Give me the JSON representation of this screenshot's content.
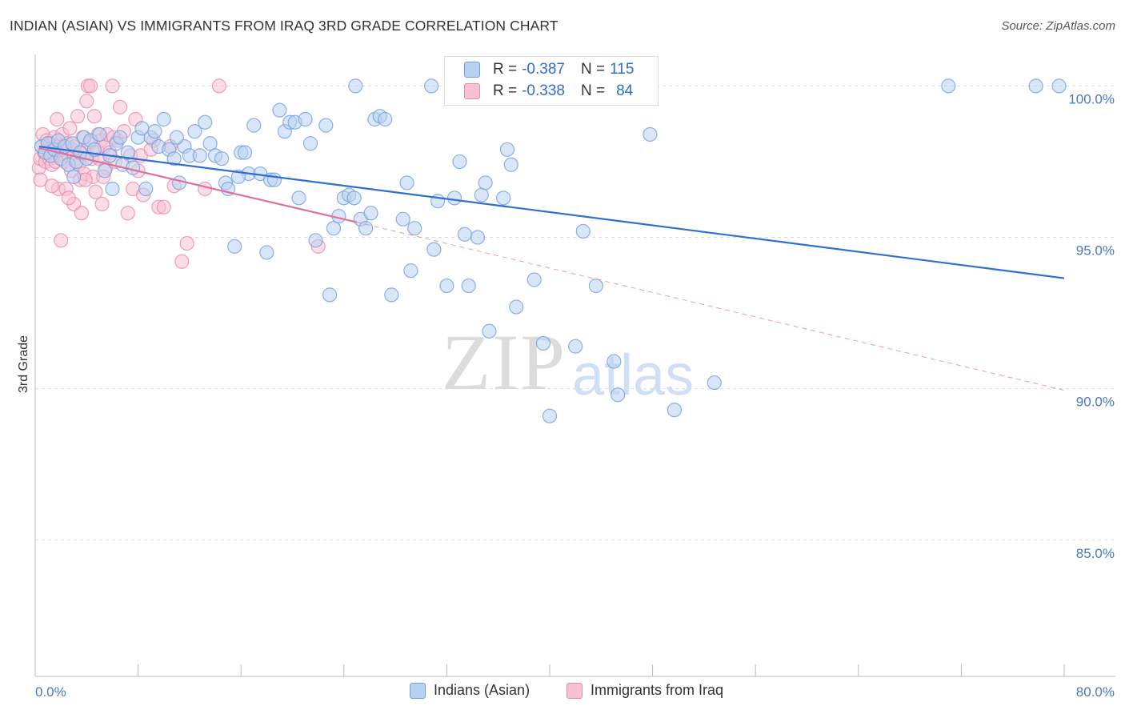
{
  "chart_data": {
    "type": "scatter",
    "title": "INDIAN (ASIAN) VS IMMIGRANTS FROM IRAQ 3RD GRADE CORRELATION CHART",
    "source": "Source: ZipAtlas.com",
    "ylabel": "3rd Grade",
    "xlabel": "",
    "xlim": [
      0,
      80
    ],
    "ylim": [
      80.5,
      101.2
    ],
    "x_tick_labels": [
      "0.0%",
      "80.0%"
    ],
    "y_ticks": [
      85,
      90,
      95,
      100
    ],
    "y_tick_labels": [
      "85.0%",
      "90.0%",
      "95.0%",
      "100.0%"
    ],
    "legend_placement": "top-center",
    "series": [
      {
        "name": "Indians (Asian)",
        "color": "#6f9fe0",
        "fill": "#b9d1f1",
        "R": "-0.387",
        "N": "115",
        "trend": {
          "x0": 0.3,
          "y0": 98.0,
          "x1": 80.0,
          "y1": 93.65
        },
        "points": [
          [
            0.5,
            98.0
          ],
          [
            0.8,
            97.8
          ],
          [
            1.0,
            98.1
          ],
          [
            1.2,
            97.7
          ],
          [
            1.5,
            97.9
          ],
          [
            1.8,
            98.2
          ],
          [
            2.0,
            97.6
          ],
          [
            2.3,
            98.0
          ],
          [
            2.6,
            97.4
          ],
          [
            2.9,
            98.1
          ],
          [
            3.2,
            97.5
          ],
          [
            3.5,
            97.8
          ],
          [
            3.8,
            98.3
          ],
          [
            4.0,
            97.6
          ],
          [
            4.3,
            98.2
          ],
          [
            4.6,
            97.9
          ],
          [
            5.0,
            98.4
          ],
          [
            5.4,
            97.2
          ],
          [
            5.8,
            97.7
          ],
          [
            6.0,
            96.6
          ],
          [
            6.3,
            98.1
          ],
          [
            6.8,
            97.4
          ],
          [
            7.2,
            97.8
          ],
          [
            7.6,
            97.3
          ],
          [
            8.0,
            98.3
          ],
          [
            8.3,
            98.6
          ],
          [
            8.6,
            96.6
          ],
          [
            9.0,
            98.3
          ],
          [
            9.6,
            98.0
          ],
          [
            10.0,
            98.9
          ],
          [
            10.4,
            97.9
          ],
          [
            10.8,
            97.6
          ],
          [
            11.2,
            96.8
          ],
          [
            11.6,
            98.0
          ],
          [
            12.0,
            97.7
          ],
          [
            12.4,
            98.5
          ],
          [
            12.8,
            97.7
          ],
          [
            13.2,
            98.8
          ],
          [
            13.6,
            98.1
          ],
          [
            14.0,
            97.7
          ],
          [
            14.5,
            97.6
          ],
          [
            14.8,
            96.8
          ],
          [
            15.0,
            96.6
          ],
          [
            15.5,
            94.7
          ],
          [
            16.0,
            97.8
          ],
          [
            16.3,
            97.8
          ],
          [
            16.6,
            97.1
          ],
          [
            17.0,
            98.7
          ],
          [
            17.5,
            97.1
          ],
          [
            18.0,
            94.5
          ],
          [
            18.3,
            96.9
          ],
          [
            18.6,
            96.9
          ],
          [
            19.0,
            99.2
          ],
          [
            19.4,
            98.5
          ],
          [
            19.8,
            98.8
          ],
          [
            20.2,
            98.8
          ],
          [
            20.5,
            96.3
          ],
          [
            21.0,
            98.9
          ],
          [
            21.4,
            98.1
          ],
          [
            21.8,
            94.9
          ],
          [
            22.6,
            98.7
          ],
          [
            22.9,
            93.1
          ],
          [
            23.2,
            95.3
          ],
          [
            23.6,
            95.7
          ],
          [
            24.0,
            96.3
          ],
          [
            24.4,
            96.4
          ],
          [
            24.8,
            96.3
          ],
          [
            25.3,
            95.6
          ],
          [
            25.7,
            95.3
          ],
          [
            26.1,
            95.8
          ],
          [
            26.4,
            98.9
          ],
          [
            26.8,
            99.0
          ],
          [
            27.2,
            98.9
          ],
          [
            27.7,
            93.1
          ],
          [
            28.6,
            95.6
          ],
          [
            28.9,
            96.8
          ],
          [
            29.2,
            93.9
          ],
          [
            29.5,
            95.3
          ],
          [
            31.0,
            94.6
          ],
          [
            31.3,
            96.2
          ],
          [
            32.0,
            93.4
          ],
          [
            32.6,
            96.3
          ],
          [
            33.0,
            97.5
          ],
          [
            33.4,
            95.1
          ],
          [
            33.7,
            93.4
          ],
          [
            34.4,
            95.0
          ],
          [
            34.7,
            96.4
          ],
          [
            35.0,
            96.8
          ],
          [
            35.3,
            91.9
          ],
          [
            36.4,
            96.3
          ],
          [
            36.7,
            97.9
          ],
          [
            37.0,
            97.4
          ],
          [
            37.4,
            92.7
          ],
          [
            38.8,
            93.6
          ],
          [
            39.5,
            91.5
          ],
          [
            40.0,
            89.1
          ],
          [
            41.5,
            100.0
          ],
          [
            42.0,
            91.4
          ],
          [
            42.6,
            95.2
          ],
          [
            43.6,
            93.4
          ],
          [
            45.0,
            90.9
          ],
          [
            45.3,
            89.8
          ],
          [
            47.8,
            98.4
          ],
          [
            49.7,
            89.3
          ],
          [
            52.8,
            90.2
          ],
          [
            71.0,
            100.0
          ],
          [
            77.8,
            100.0
          ],
          [
            79.6,
            100.0
          ],
          [
            24.9,
            100.0
          ],
          [
            30.8,
            100.0
          ],
          [
            9.3,
            98.5
          ],
          [
            11.0,
            98.3
          ],
          [
            15.8,
            97.0
          ],
          [
            6.6,
            98.3
          ],
          [
            3.0,
            97.0
          ]
        ]
      },
      {
        "name": "Immigrants from Iraq",
        "color": "#e88aab",
        "fill": "#f6c1d3",
        "R": "-0.338",
        "N": "84",
        "trend": {
          "x0": 0.3,
          "y0": 97.95,
          "x1": 25.0,
          "y1": 95.5
        },
        "trend_dashed": {
          "x0": 25.0,
          "y0": 95.5,
          "x1": 80.0,
          "y1": 89.95
        },
        "points": [
          [
            0.3,
            97.3
          ],
          [
            0.4,
            97.6
          ],
          [
            0.5,
            98.0
          ],
          [
            0.6,
            98.4
          ],
          [
            0.7,
            97.8
          ],
          [
            0.8,
            97.5
          ],
          [
            0.9,
            98.2
          ],
          [
            1.0,
            97.9
          ],
          [
            1.1,
            97.6
          ],
          [
            1.2,
            98.1
          ],
          [
            1.3,
            97.4
          ],
          [
            1.4,
            97.8
          ],
          [
            1.5,
            98.3
          ],
          [
            1.6,
            97.5
          ],
          [
            1.7,
            98.0
          ],
          [
            1.8,
            96.6
          ],
          [
            1.9,
            97.7
          ],
          [
            2.0,
            94.9
          ],
          [
            2.1,
            98.4
          ],
          [
            2.2,
            97.9
          ],
          [
            2.3,
            97.5
          ],
          [
            2.4,
            96.6
          ],
          [
            2.5,
            98.1
          ],
          [
            2.6,
            97.7
          ],
          [
            2.7,
            98.6
          ],
          [
            2.8,
            97.2
          ],
          [
            2.9,
            97.9
          ],
          [
            3.0,
            96.1
          ],
          [
            3.1,
            98.0
          ],
          [
            3.2,
            97.6
          ],
          [
            3.3,
            99.0
          ],
          [
            3.4,
            97.4
          ],
          [
            3.5,
            96.9
          ],
          [
            3.6,
            95.8
          ],
          [
            3.7,
            98.3
          ],
          [
            3.8,
            97.1
          ],
          [
            3.9,
            97.8
          ],
          [
            4.0,
            99.5
          ],
          [
            4.1,
            100.0
          ],
          [
            4.2,
            98.1
          ],
          [
            4.3,
            100.0
          ],
          [
            4.4,
            97.6
          ],
          [
            4.5,
            97.0
          ],
          [
            4.6,
            99.0
          ],
          [
            4.7,
            96.5
          ],
          [
            4.8,
            97.9
          ],
          [
            4.9,
            98.4
          ],
          [
            5.0,
            97.6
          ],
          [
            5.1,
            98.2
          ],
          [
            5.2,
            96.1
          ],
          [
            5.4,
            98.0
          ],
          [
            5.5,
            97.3
          ],
          [
            5.6,
            98.4
          ],
          [
            5.8,
            97.8
          ],
          [
            6.0,
            100.0
          ],
          [
            6.2,
            97.5
          ],
          [
            6.4,
            98.2
          ],
          [
            6.6,
            99.3
          ],
          [
            6.9,
            98.5
          ],
          [
            7.2,
            95.8
          ],
          [
            7.4,
            97.7
          ],
          [
            7.6,
            96.6
          ],
          [
            7.8,
            98.9
          ],
          [
            8.2,
            97.7
          ],
          [
            8.4,
            96.4
          ],
          [
            9.2,
            98.2
          ],
          [
            9.6,
            96.0
          ],
          [
            10.0,
            96.0
          ],
          [
            10.5,
            98.0
          ],
          [
            10.8,
            96.7
          ],
          [
            11.4,
            94.2
          ],
          [
            11.8,
            94.8
          ],
          [
            13.2,
            96.6
          ],
          [
            14.3,
            100.0
          ],
          [
            22.0,
            94.7
          ],
          [
            0.4,
            96.9
          ],
          [
            1.3,
            96.7
          ],
          [
            2.6,
            96.3
          ],
          [
            3.9,
            96.9
          ],
          [
            5.3,
            97.0
          ],
          [
            6.1,
            98.3
          ],
          [
            8.0,
            97.2
          ],
          [
            9.0,
            97.9
          ],
          [
            1.7,
            98.9
          ]
        ]
      }
    ]
  },
  "legend": {
    "r_label": "R = ",
    "n_label": "N = ",
    "entries": [
      {
        "label": "Indians (Asian)",
        "r": "-0.387",
        "n": "115"
      },
      {
        "label": "Immigrants from Iraq",
        "r": "-0.338",
        "n": "84"
      }
    ]
  },
  "watermark": {
    "zip": "ZIP",
    "atlas": "atlas"
  },
  "colors": {
    "blue_line": "#2f6fd1",
    "pink_line": "#e0709a",
    "grid": "#d9d9d9"
  }
}
